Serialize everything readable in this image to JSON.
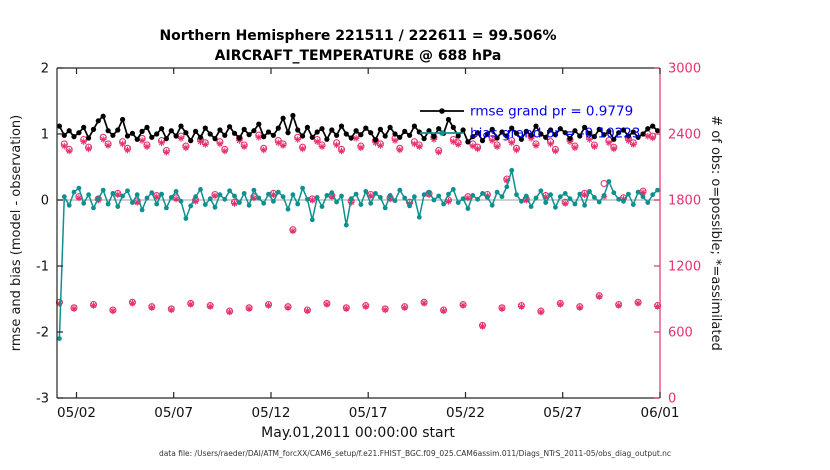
{
  "colors": {
    "rmse": "#000000",
    "bias": "#0f9090",
    "obs": "#e5326e",
    "legend_text": "#0000ee",
    "axis": "#262626",
    "zero_line": "#bdbdbd"
  },
  "footer": "data file: /Users/raeder/DAI/ATM_forcXX/CAM6_setup/f.e21.FHIST_BGC.f09_025.CAM6assim.011/Diags_NTrS_2011-05/obs_diag_output.nc",
  "chart_data": {
    "type": "line",
    "title_line1": "Northern Hemisphere 221511 / 222611 = 99.506%",
    "title_line2": "AIRCRAFT_TEMPERATURE @ 688 hPa",
    "left_ylabel": "rmse and bias (model - observation)",
    "right_ylabel": "# of obs: o=possible; *=assimilated",
    "xlabel": "May.01,2011 00:00:00 start",
    "xlim": [
      0,
      31
    ],
    "left_ylim": [
      -3,
      2
    ],
    "right_ylim": [
      0,
      3000
    ],
    "grid": "off",
    "zero_line": 0,
    "legend": {
      "position": "top-right-inside",
      "entries": [
        {
          "label": "rmse grand pr = 0.9779",
          "color_key": "rmse"
        },
        {
          "label": "bias grand pr = -0.10223",
          "color_key": "bias"
        }
      ]
    },
    "axes": {
      "left_ticks": [
        -3,
        -2,
        -1,
        0,
        1,
        2
      ],
      "right_ticks": [
        0,
        600,
        1200,
        1800,
        2400,
        3000
      ],
      "x_ticks": [
        1,
        6,
        11,
        16,
        21,
        26,
        31
      ],
      "x_tick_labels": [
        "05/02",
        "05/07",
        "05/12",
        "05/17",
        "05/22",
        "05/27",
        "06/01"
      ]
    },
    "x": {
      "start": 0.125,
      "step": 0.25,
      "count": 124,
      "units": "days since 2011-05-01 00:00:00"
    },
    "series": [
      {
        "name": "rmse",
        "axis": "left",
        "marker": "dot",
        "values": [
          1.12,
          0.98,
          1.05,
          0.96,
          1.02,
          1.1,
          0.94,
          1.07,
          1.2,
          1.27,
          1.05,
          0.98,
          1.06,
          1.22,
          0.97,
          1.01,
          0.92,
          1.04,
          1.1,
          0.95,
          1.0,
          1.08,
          0.93,
          1.05,
          0.97,
          1.12,
          1.02,
          0.9,
          1.04,
          0.95,
          1.09,
          1.0,
          0.93,
          1.06,
          0.98,
          1.11,
          1.01,
          0.94,
          1.07,
          0.99,
          1.05,
          1.15,
          0.96,
          1.03,
          0.98,
          1.09,
          1.24,
          1.02,
          1.28,
          1.06,
          0.97,
          1.1,
          0.95,
          1.03,
          1.08,
          0.92,
          1.06,
          0.98,
          1.12,
          1.0,
          0.94,
          1.05,
          0.99,
          1.09,
          1.02,
          0.91,
          1.07,
          0.97,
          1.1,
          1.0,
          0.95,
          1.04,
          0.98,
          1.12,
          1.03,
          0.93,
          1.05,
          0.96,
          1.08,
          1.01,
          1.22,
          1.1,
          0.97,
          1.06,
          0.88,
          0.96,
          1.02,
          0.9,
          1.0,
          1.07,
          0.94,
          1.03,
          0.97,
          1.09,
          1.01,
          0.92,
          1.04,
          0.98,
          1.12,
          1.0,
          0.95,
          1.06,
          0.99,
          1.08,
          1.02,
          0.93,
          1.05,
          0.97,
          1.1,
          1.01,
          0.96,
          1.07,
          0.99,
          1.04,
          0.92,
          1.02,
          1.06,
          0.97,
          1.03,
          0.95,
          1.0,
          1.08,
          1.12,
          1.05
        ]
      },
      {
        "name": "bias",
        "axis": "left",
        "marker": "dot",
        "values": [
          -2.1,
          0.05,
          -0.08,
          0.12,
          0.18,
          -0.05,
          0.08,
          -0.12,
          0.02,
          0.15,
          -0.06,
          0.1,
          -0.1,
          0.06,
          0.14,
          -0.04,
          0.08,
          -0.15,
          0.03,
          0.11,
          -0.06,
          0.09,
          -0.12,
          0.04,
          0.13,
          -0.02,
          -0.28,
          -0.09,
          0.05,
          0.16,
          -0.07,
          0.02,
          -0.11,
          0.08,
          0.01,
          0.14,
          0.06,
          -0.04,
          0.1,
          -0.08,
          0.15,
          0.03,
          -0.05,
          0.09,
          -0.02,
          0.12,
          0.05,
          -0.14,
          0.08,
          -0.06,
          0.18,
          0.01,
          -0.3,
          0.04,
          -0.1,
          0.07,
          0.11,
          -0.03,
          0.06,
          -0.38,
          0.02,
          0.09,
          -0.07,
          0.13,
          -0.05,
          0.1,
          0.04,
          -0.12,
          0.07,
          -0.01,
          0.15,
          0.03,
          -0.09,
          0.05,
          -0.26,
          0.08,
          0.12,
          0.0,
          0.06,
          -0.06,
          0.09,
          0.16,
          -0.04,
          0.02,
          -0.13,
          0.07,
          0.01,
          0.1,
          0.04,
          -0.08,
          0.12,
          0.05,
          0.2,
          0.45,
          0.08,
          -0.02,
          0.06,
          -0.1,
          0.03,
          0.14,
          -0.04,
          0.08,
          -0.11,
          0.05,
          0.1,
          0.02,
          -0.06,
          0.09,
          -0.08,
          0.13,
          0.04,
          -0.03,
          0.07,
          0.28,
          0.11,
          0.01,
          -0.02,
          0.09,
          -0.07,
          0.12,
          0.05,
          -0.04,
          0.08,
          0.15
        ]
      },
      {
        "name": "possible",
        "axis": "right",
        "marker": "o",
        "values": [
          870,
          2310,
          2260,
          820,
          1830,
          2350,
          2280,
          850,
          1810,
          2370,
          2310,
          800,
          1860,
          2330,
          2270,
          870,
          1790,
          2360,
          2300,
          830,
          1840,
          2340,
          2250,
          810,
          1820,
          2380,
          2290,
          860,
          1800,
          2350,
          2320,
          840,
          1850,
          2330,
          2260,
          790,
          1780,
          2360,
          2300,
          820,
          1830,
          2390,
          2270,
          850,
          1860,
          2340,
          2310,
          830,
          1530,
          2370,
          2280,
          800,
          1810,
          2350,
          2300,
          860,
          1840,
          2320,
          2260,
          820,
          1790,
          2380,
          2290,
          840,
          1850,
          2340,
          2310,
          810,
          1820,
          2360,
          2270,
          830,
          1780,
          2330,
          2300,
          870,
          1860,
          2370,
          2250,
          800,
          1800,
          2350,
          2320,
          850,
          1830,
          2310,
          2280,
          660,
          1850,
          2360,
          2300,
          820,
          1990,
          2340,
          2270,
          840,
          1810,
          2380,
          2310,
          790,
          1840,
          2330,
          2260,
          860,
          1780,
          2350,
          2290,
          830,
          1860,
          2370,
          2300,
          930,
          1950,
          2340,
          2280,
          850,
          1820,
          2360,
          2320,
          870,
          1880,
          2400,
          2380,
          840
        ]
      },
      {
        "name": "assimilated",
        "axis": "right",
        "marker": "*",
        "values": [
          858,
          2290,
          2245,
          812,
          1818,
          2330,
          2265,
          842,
          1798,
          2350,
          2295,
          792,
          1848,
          2310,
          2255,
          862,
          1778,
          2340,
          2285,
          822,
          1828,
          2320,
          2235,
          802,
          1808,
          2360,
          2275,
          852,
          1788,
          2330,
          2305,
          832,
          1838,
          2310,
          2245,
          782,
          1768,
          2340,
          2285,
          812,
          1818,
          2370,
          2255,
          842,
          1848,
          2320,
          2295,
          822,
          1518,
          2350,
          2265,
          792,
          1798,
          2330,
          2285,
          852,
          1828,
          2300,
          2245,
          812,
          1778,
          2360,
          2275,
          832,
          1838,
          2320,
          2295,
          802,
          1808,
          2340,
          2255,
          822,
          1768,
          2310,
          2285,
          862,
          1848,
          2350,
          2235,
          792,
          1788,
          2330,
          2305,
          842,
          1818,
          2290,
          2265,
          652,
          1838,
          2340,
          2285,
          812,
          1978,
          2320,
          2255,
          832,
          1798,
          2360,
          2295,
          782,
          1828,
          2310,
          2245,
          852,
          1768,
          2330,
          2275,
          822,
          1848,
          2350,
          2285,
          922,
          1830,
          2320,
          2265,
          842,
          1808,
          2340,
          2305,
          862,
          1868,
          2380,
          2365,
          832
        ]
      }
    ]
  }
}
